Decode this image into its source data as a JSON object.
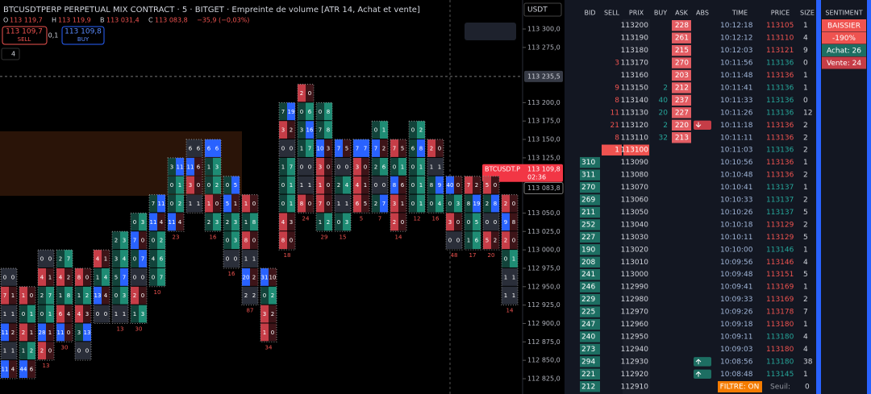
{
  "header": {
    "title": "BTCUSDTPERP PERPETUAL MIX CONTRACT · 5 · BITGET · Empreinte de volume [ATR 14, Achat et vente]",
    "ohlc": [
      [
        "O",
        "113 119,7"
      ],
      [
        "H",
        "113 119,9"
      ],
      [
        "B",
        "113 031,4"
      ],
      [
        "C",
        "113 083,8"
      ]
    ],
    "change": "−35,9 (−0,03%)",
    "sell": {
      "price": "113 109,7",
      "label": "SELL"
    },
    "spread": "0,1",
    "buy": {
      "price": "113 109,8",
      "label": "BUY"
    },
    "indicators": "4",
    "currency": "USDT"
  },
  "price_axis": {
    "ylim": [
      112815,
      113315
    ],
    "ticks": [
      {
        "value": 113300,
        "label": "113 300,0"
      },
      {
        "value": 113275,
        "label": "113 275,0"
      },
      {
        "value": 113200,
        "label": "113 200,0"
      },
      {
        "value": 113175,
        "label": "113 175,0"
      },
      {
        "value": 113150,
        "label": "113 150,0"
      },
      {
        "value": 113125,
        "label": "113 125,0"
      },
      {
        "value": 113050,
        "label": "113 050,0"
      },
      {
        "value": 113025,
        "label": "113 025,0"
      },
      {
        "value": 113000,
        "label": "113 000,0"
      },
      {
        "value": 112975,
        "label": "112 975,0"
      },
      {
        "value": 112950,
        "label": "112 950,0"
      },
      {
        "value": 112925,
        "label": "112 925,0"
      },
      {
        "value": 112900,
        "label": "112 900,0"
      },
      {
        "value": 112875,
        "label": "112 875,0"
      },
      {
        "value": 112850,
        "label": "112 850,0"
      },
      {
        "value": 112825,
        "label": "112 825,0"
      }
    ],
    "crosshair": {
      "value": 113235.5,
      "label": "113 235,5"
    },
    "last": {
      "value": 113109.8,
      "label": "113 109,8",
      "symbol": "BTCUSDT.P",
      "countdown": "02:36"
    },
    "close": {
      "value": 113083.8,
      "label": "113 083,8"
    }
  },
  "footprint": {
    "row": 25,
    "candles": [
      {
        "top": 112975,
        "cells": [
          [
            0,
            0
          ],
          [
            7,
            1
          ],
          [
            1,
            1
          ],
          [
            11,
            2
          ],
          [
            1,
            1
          ],
          [
            11,
            4
          ]
        ],
        "delta": null
      },
      {
        "top": 112950,
        "cells": [
          [
            1,
            0
          ],
          [
            0,
            1
          ],
          [
            2,
            1
          ],
          [
            1,
            2
          ],
          [
            44,
            6
          ]
        ],
        "delta": null
      },
      {
        "top": 113000,
        "cells": [
          [
            0,
            0
          ],
          [
            4,
            1
          ],
          [
            2,
            7
          ],
          [
            0,
            1
          ],
          [
            28,
            1
          ],
          [
            2,
            0
          ]
        ],
        "delta": "13"
      },
      {
        "top": 113000,
        "cells": [
          [
            2,
            7
          ],
          [
            4,
            2
          ],
          [
            1,
            8
          ],
          [
            6,
            4
          ],
          [
            11,
            0
          ]
        ],
        "delta": "30"
      },
      {
        "top": 112975,
        "cells": [
          [
            8,
            0
          ],
          [
            1,
            2
          ],
          [
            4,
            3
          ],
          [
            3,
            13
          ],
          [
            0,
            0
          ]
        ],
        "delta": null
      },
      {
        "top": 113000,
        "cells": [
          [
            4,
            1
          ],
          [
            1,
            4
          ],
          [
            13,
            4
          ],
          [
            0,
            0
          ]
        ],
        "delta": null
      },
      {
        "top": 113025,
        "cells": [
          [
            2,
            3
          ],
          [
            3,
            4
          ],
          [
            5,
            7
          ],
          [
            0,
            3
          ],
          [
            1,
            1
          ]
        ],
        "delta": "13"
      },
      {
        "top": 113050,
        "cells": [
          [
            0,
            3
          ],
          [
            7,
            0
          ],
          [
            0,
            7
          ],
          [
            0,
            0
          ],
          [
            2,
            0
          ],
          [
            1,
            3
          ]
        ],
        "delta": "30"
      },
      {
        "top": 113075,
        "cells": [
          [
            7,
            11
          ],
          [
            11,
            4
          ],
          [
            0,
            2
          ],
          [
            4,
            6
          ],
          [
            0,
            7
          ]
        ],
        "delta": "10"
      },
      {
        "top": 113125,
        "cells": [
          [
            3,
            11
          ],
          [
            0,
            1
          ],
          [
            0,
            2
          ],
          [
            11,
            4
          ]
        ],
        "delta": "23"
      },
      {
        "top": 113150,
        "cells": [
          [
            6,
            6
          ],
          [
            11,
            6
          ],
          [
            3,
            0
          ],
          [
            1,
            1
          ]
        ],
        "delta": null
      },
      {
        "top": 113150,
        "cells": [
          [
            6,
            6
          ],
          [
            1,
            3
          ],
          [
            0,
            2
          ],
          [
            1,
            0
          ],
          [
            2,
            3
          ]
        ],
        "delta": "16"
      },
      {
        "top": 113100,
        "cells": [
          [
            0,
            5
          ],
          [
            5,
            1
          ],
          [
            2,
            3
          ],
          [
            0,
            3
          ],
          [
            0,
            0
          ]
        ],
        "delta": "16"
      },
      {
        "top": 113075,
        "cells": [
          [
            1,
            0
          ],
          [
            1,
            8
          ],
          [
            8,
            0
          ],
          [
            1,
            1
          ],
          [
            20,
            2
          ],
          [
            2,
            2
          ]
        ],
        "delta": "87"
      },
      {
        "top": 112975,
        "cells": [
          [
            31,
            10
          ],
          [
            0,
            2
          ],
          [
            3,
            2
          ],
          [
            1,
            0
          ]
        ],
        "delta": "34"
      },
      {
        "top": 113200,
        "cells": [
          [
            7,
            19
          ],
          [
            3,
            2
          ],
          [
            0,
            0
          ],
          [
            1,
            7
          ],
          [
            0,
            1
          ],
          [
            0,
            1
          ],
          [
            4,
            3
          ],
          [
            8,
            0
          ]
        ],
        "delta": "18"
      },
      {
        "top": 113225,
        "cells": [
          [
            2,
            0
          ],
          [
            0,
            6
          ],
          [
            3,
            16
          ],
          [
            1,
            7
          ],
          [
            0,
            0
          ],
          [
            1,
            1
          ],
          [
            8,
            0
          ]
        ],
        "delta": "24"
      },
      {
        "top": 113200,
        "cells": [
          [
            0,
            8
          ],
          [
            7,
            8
          ],
          [
            10,
            3
          ],
          [
            3,
            0
          ],
          [
            1,
            0
          ],
          [
            7,
            0
          ],
          [
            1,
            2
          ]
        ],
        "delta": "29"
      },
      {
        "top": 113150,
        "cells": [
          [
            7,
            5
          ],
          [
            0,
            0
          ],
          [
            2,
            4
          ],
          [
            1,
            1
          ],
          [
            0,
            3
          ]
        ],
        "delta": "15"
      },
      {
        "top": 113150,
        "cells": [
          [
            7,
            7
          ],
          [
            3,
            0
          ],
          [
            4,
            1
          ],
          [
            6,
            5
          ]
        ],
        "delta": "5"
      },
      {
        "top": 113175,
        "cells": [
          [
            0,
            1
          ],
          [
            7,
            2
          ],
          [
            2,
            6
          ],
          [
            0,
            0
          ],
          [
            2,
            7
          ]
        ],
        "delta": "7"
      },
      {
        "top": 113150,
        "cells": [
          [
            7,
            5
          ],
          [
            0,
            1
          ],
          [
            8,
            6
          ],
          [
            3,
            1
          ],
          [
            2,
            0
          ]
        ],
        "delta": "14"
      },
      {
        "top": 113175,
        "cells": [
          [
            0,
            2
          ],
          [
            6,
            8
          ],
          [
            0,
            1
          ],
          [
            0,
            1
          ],
          [
            0,
            1
          ]
        ],
        "delta": "12"
      },
      {
        "top": 113150,
        "cells": [
          [
            2,
            0
          ],
          [
            1,
            1
          ],
          [
            8,
            9
          ],
          [
            0,
            4
          ]
        ],
        "delta": "16"
      },
      {
        "top": 113100,
        "cells": [
          [
            40,
            0
          ],
          [
            0,
            3
          ],
          [
            3,
            0
          ],
          [
            0,
            0
          ]
        ],
        "delta": "48"
      },
      {
        "top": 113100,
        "cells": [
          [
            7,
            2
          ],
          [
            8,
            19
          ],
          [
            0,
            5
          ],
          [
            1,
            6
          ]
        ],
        "delta": "17"
      },
      {
        "top": 113100,
        "cells": [
          [
            5,
            0
          ],
          [
            2,
            8
          ],
          [
            0,
            0
          ],
          [
            5,
            2
          ]
        ],
        "delta": "20"
      },
      {
        "top": 113075,
        "cells": [
          [
            2,
            0
          ],
          [
            9,
            8
          ],
          [
            2,
            0
          ],
          [
            0,
            1
          ],
          [
            1,
            1
          ],
          [
            1,
            1
          ]
        ],
        "delta": "14"
      }
    ]
  },
  "order_book": {
    "headers": [
      "BID",
      "SELL",
      "PRIX",
      "BUY",
      "ASK",
      "ABS"
    ],
    "rows": [
      {
        "price": 113200,
        "bid": null,
        "sell": null,
        "buy": null,
        "ask": 228
      },
      {
        "price": 113190,
        "bid": null,
        "sell": null,
        "buy": null,
        "ask": 261
      },
      {
        "price": 113180,
        "bid": null,
        "sell": null,
        "buy": null,
        "ask": 215
      },
      {
        "price": 113170,
        "bid": null,
        "sell": 3,
        "buy": null,
        "ask": 270
      },
      {
        "price": 113160,
        "bid": null,
        "sell": null,
        "buy": null,
        "ask": 203
      },
      {
        "price": 113150,
        "bid": null,
        "sell": 9,
        "buy": 2,
        "ask": 212
      },
      {
        "price": 113140,
        "bid": null,
        "sell": 8,
        "buy": 40,
        "ask": 237
      },
      {
        "price": 113130,
        "bid": null,
        "sell": 11,
        "buy": 20,
        "ask": 227
      },
      {
        "price": 113120,
        "bid": null,
        "sell": 21,
        "buy": 2,
        "ask": 220,
        "abs": "down"
      },
      {
        "price": 113110,
        "bid": null,
        "sell": 8,
        "buy": 32,
        "ask": 213
      },
      {
        "price": 113100,
        "bid": null,
        "sell": 1,
        "buy": null,
        "ask": null,
        "current": true
      },
      {
        "price": 113090,
        "bid": 310
      },
      {
        "price": 113080,
        "bid": 311
      },
      {
        "price": 113070,
        "bid": 270
      },
      {
        "price": 113060,
        "bid": 269
      },
      {
        "price": 113050,
        "bid": 211
      },
      {
        "price": 113040,
        "bid": 252
      },
      {
        "price": 113030,
        "bid": 227
      },
      {
        "price": 113020,
        "bid": 190
      },
      {
        "price": 113010,
        "bid": 208
      },
      {
        "price": 113000,
        "bid": 241
      },
      {
        "price": 112990,
        "bid": 246
      },
      {
        "price": 112980,
        "bid": 229
      },
      {
        "price": 112970,
        "bid": 225
      },
      {
        "price": 112960,
        "bid": 247
      },
      {
        "price": 112950,
        "bid": 240
      },
      {
        "price": 112940,
        "bid": 273
      },
      {
        "price": 112930,
        "bid": 294,
        "abs": "up"
      },
      {
        "price": 112920,
        "bid": 221,
        "abs": "up"
      },
      {
        "price": 112910,
        "bid": 212
      }
    ]
  },
  "time_sales": {
    "headers": [
      "TIME",
      "PRICE",
      "SIZE"
    ],
    "colors": {
      "buy": "#26a69a",
      "sell": "#ef5350"
    },
    "rows": [
      [
        "10:12:18",
        113105,
        1,
        "sell"
      ],
      [
        "10:12:12",
        113110,
        4,
        "sell"
      ],
      [
        "10:12:03",
        113121,
        9,
        "sell"
      ],
      [
        "10:11:56",
        113136,
        0,
        "buy"
      ],
      [
        "10:11:48",
        113136,
        1,
        "sell"
      ],
      [
        "10:11:41",
        113136,
        1,
        "buy"
      ],
      [
        "10:11:33",
        113136,
        0,
        "buy"
      ],
      [
        "10:11:26",
        113136,
        12,
        "buy"
      ],
      [
        "10:11:18",
        113136,
        2,
        "sell"
      ],
      [
        "10:11:11",
        113136,
        2,
        "sell"
      ],
      [
        "10:11:03",
        113136,
        2,
        "buy"
      ],
      [
        "10:10:56",
        113136,
        1,
        "sell"
      ],
      [
        "10:10:48",
        113136,
        2,
        "sell"
      ],
      [
        "10:10:41",
        113137,
        1,
        "buy"
      ],
      [
        "10:10:33",
        113137,
        2,
        "buy"
      ],
      [
        "10:10:26",
        113137,
        5,
        "buy"
      ],
      [
        "10:10:18",
        113129,
        2,
        "sell"
      ],
      [
        "10:10:11",
        113129,
        5,
        "sell"
      ],
      [
        "10:10:00",
        113146,
        1,
        "buy"
      ],
      [
        "10:09:56",
        113146,
        4,
        "sell"
      ],
      [
        "10:09:48",
        113151,
        5,
        "sell"
      ],
      [
        "10:09:41",
        113169,
        1,
        "sell"
      ],
      [
        "10:09:33",
        113169,
        2,
        "sell"
      ],
      [
        "10:09:26",
        113178,
        7,
        "sell"
      ],
      [
        "10:09:18",
        113180,
        1,
        "sell"
      ],
      [
        "10:09:11",
        113180,
        4,
        "buy"
      ],
      [
        "10:09:03",
        113180,
        4,
        "sell"
      ],
      [
        "10:08:56",
        113180,
        38,
        "buy"
      ],
      [
        "10:08:48",
        113145,
        1,
        "buy"
      ]
    ],
    "filter": "FILTRE: ON",
    "threshold_label": "Seuil:",
    "threshold": 0
  },
  "sentiment": {
    "header": "SENTIMENT",
    "state": "BAISSIER",
    "percent": "-190%",
    "buy": "Achat: 26",
    "sell": "Vente: 24"
  }
}
